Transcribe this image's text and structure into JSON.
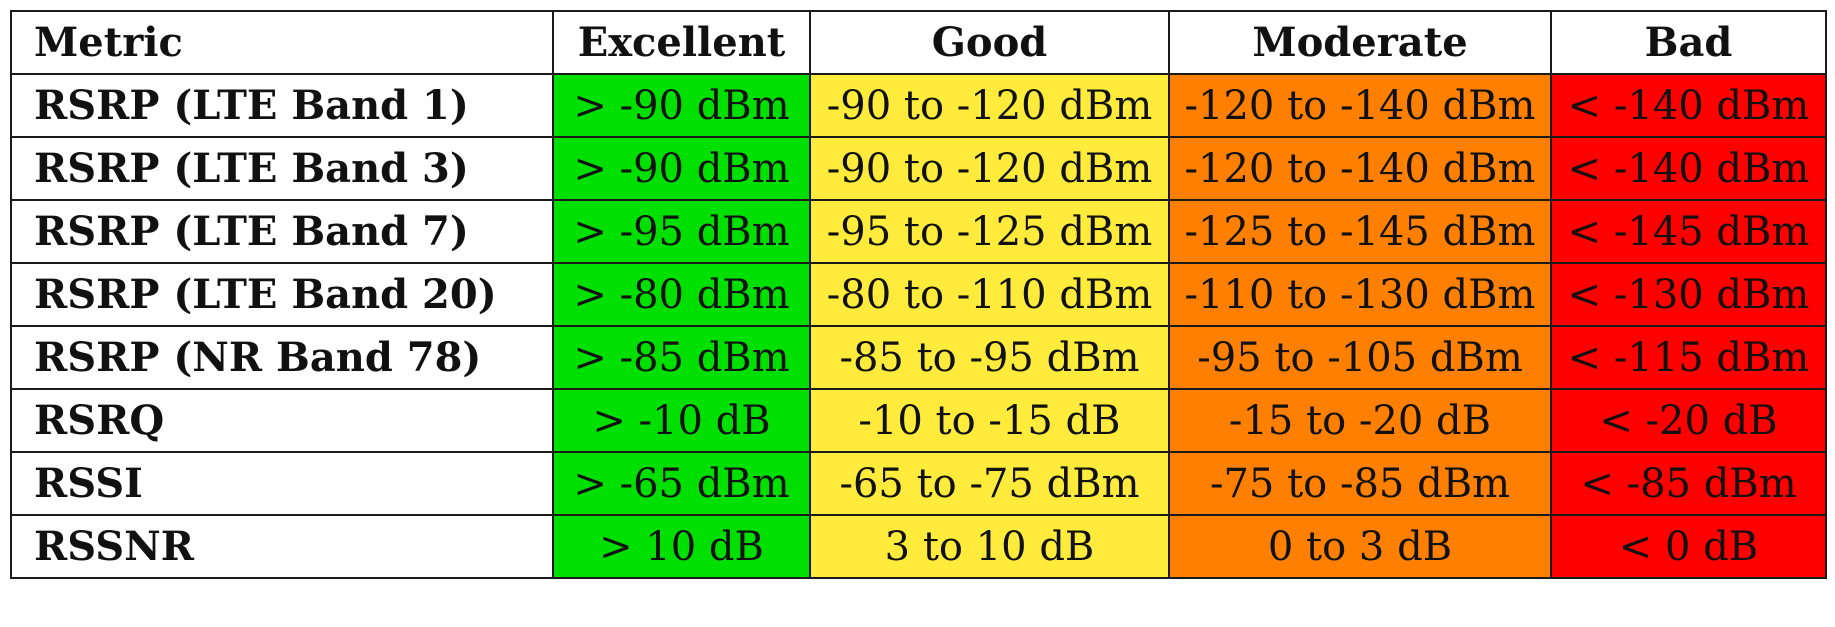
{
  "table": {
    "headers": [
      "Metric",
      "Excellent",
      "Good",
      "Moderate",
      "Bad"
    ],
    "rows": [
      {
        "metric": "RSRP (LTE Band 1)",
        "excellent": "> -90 dBm",
        "good": "-90 to -120 dBm",
        "moderate": "-120 to -140 dBm",
        "bad": "< -140 dBm"
      },
      {
        "metric": "RSRP (LTE Band 3)",
        "excellent": "> -90 dBm",
        "good": "-90 to -120 dBm",
        "moderate": "-120 to -140 dBm",
        "bad": "< -140 dBm"
      },
      {
        "metric": "RSRP (LTE Band 7)",
        "excellent": "> -95 dBm",
        "good": "-95 to -125 dBm",
        "moderate": "-125 to -145 dBm",
        "bad": "< -145 dBm"
      },
      {
        "metric": "RSRP (LTE Band 20)",
        "excellent": "> -80 dBm",
        "good": "-80 to -110 dBm",
        "moderate": "-110 to -130 dBm",
        "bad": "< -130 dBm"
      },
      {
        "metric": "RSRP (NR Band 78)",
        "excellent": "> -85 dBm",
        "good": "-85 to -95 dBm",
        "moderate": "-95 to -105 dBm",
        "bad": "< -115 dBm"
      },
      {
        "metric": "RSRQ",
        "excellent": "> -10 dB",
        "good": "-10 to -15 dB",
        "moderate": "-15 to -20 dB",
        "bad": "< -20 dB"
      },
      {
        "metric": "RSSI",
        "excellent": "> -65 dBm",
        "good": "-65 to -75 dBm",
        "moderate": "-75 to -85 dBm",
        "bad": "< -85 dBm"
      },
      {
        "metric": "RSSNR",
        "excellent": "> 10 dB",
        "good": "3 to 10 dB",
        "moderate": "0 to 3 dB",
        "bad": "< 0 dB"
      }
    ]
  },
  "colors": {
    "excellent": "#00e000",
    "good": "#ffeb3b",
    "moderate": "#ff8000",
    "bad": "#ff0000",
    "border": "#1a1a1a"
  }
}
